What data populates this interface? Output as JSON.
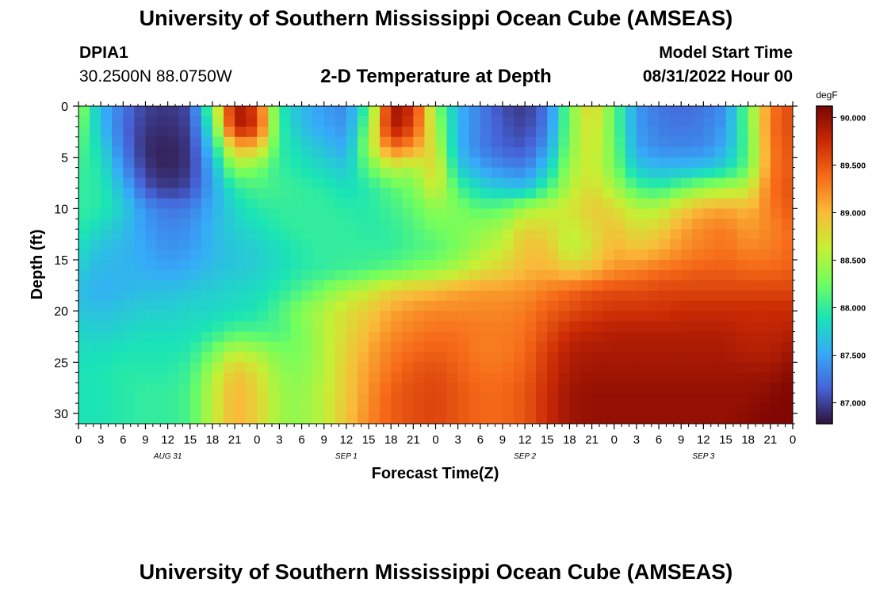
{
  "header": {
    "title": "University of Southern Mississippi Ocean Cube (AMSEAS)",
    "station_id": "DPIA1",
    "station_coords": "30.2500N  88.0750W",
    "plot_title": "2-D Temperature at Depth",
    "model_start_label": "Model Start Time",
    "model_start_value": "08/31/2022 Hour 00"
  },
  "footer": {
    "title": "University of Southern Mississippi Ocean Cube (AMSEAS)"
  },
  "colors": {
    "background": "#ffffff",
    "axis": "#000000",
    "colormap": [
      "#30123b",
      "#4662d7",
      "#36aaf9",
      "#1ae4b6",
      "#72fe5e",
      "#c7ef34",
      "#faba39",
      "#f66b19",
      "#ca2a04",
      "#7a0403"
    ]
  },
  "chart_data": {
    "type": "heatmap",
    "title": "2-D Temperature at Depth",
    "xlabel": "Forecast Time(Z)",
    "ylabel": "Depth (ft)",
    "x_tick_labels": [
      "0",
      "3",
      "6",
      "9",
      "12",
      "15",
      "18",
      "21",
      "0",
      "3",
      "6",
      "9",
      "12",
      "15",
      "18",
      "21",
      "0",
      "3",
      "6",
      "9",
      "12",
      "15",
      "18",
      "21",
      "0",
      "3",
      "6",
      "9",
      "12",
      "15",
      "18",
      "21",
      "0"
    ],
    "date_labels": [
      "AUG 31",
      "SEP 1",
      "SEP 2",
      "SEP 3"
    ],
    "y_tick_labels": [
      "0",
      "5",
      "10",
      "15",
      "20",
      "25",
      "30"
    ],
    "ylim": [
      0,
      31
    ],
    "xlim_hours": [
      0,
      96
    ],
    "colorbar": {
      "unit": "degF",
      "ticks": [
        "87.000",
        "87.500",
        "88.000",
        "88.500",
        "89.000",
        "89.500",
        "90.000"
      ],
      "range": [
        86.78,
        90.12
      ]
    },
    "depth_ft": [
      0,
      2,
      4,
      6,
      8,
      10,
      12,
      14,
      16,
      18,
      20,
      22,
      24,
      26,
      28,
      31
    ],
    "hours": [
      0,
      3,
      6,
      9,
      12,
      15,
      18,
      21,
      24,
      27,
      30,
      33,
      36,
      39,
      42,
      45,
      48,
      51,
      54,
      57,
      60,
      63,
      66,
      69,
      72,
      75,
      78,
      81,
      84,
      87,
      90,
      93,
      96
    ],
    "values": [
      [
        88.45,
        87.6,
        87.25,
        87.0,
        86.95,
        87.05,
        88.3,
        89.95,
        89.6,
        87.95,
        87.6,
        87.45,
        87.35,
        88.1,
        89.95,
        89.75,
        88.35,
        87.6,
        87.3,
        87.05,
        86.95,
        87.25,
        88.3,
        88.9,
        88.2,
        87.45,
        87.25,
        87.2,
        87.25,
        87.4,
        88.25,
        89.3,
        89.6
      ],
      [
        88.3,
        87.65,
        87.2,
        86.95,
        86.9,
        87.0,
        88.05,
        89.9,
        89.7,
        88.0,
        87.65,
        87.5,
        87.4,
        88.3,
        89.95,
        89.6,
        88.5,
        87.6,
        87.3,
        87.1,
        87.0,
        87.3,
        88.3,
        88.8,
        88.2,
        87.45,
        87.3,
        87.25,
        87.3,
        87.45,
        88.2,
        89.35,
        89.6
      ],
      [
        88.15,
        87.8,
        87.25,
        86.9,
        86.85,
        86.95,
        87.75,
        89.0,
        89.0,
        88.0,
        87.8,
        87.65,
        87.5,
        88.45,
        89.4,
        89.2,
        88.65,
        87.6,
        87.3,
        87.15,
        87.1,
        87.45,
        88.35,
        88.75,
        88.25,
        87.5,
        87.35,
        87.35,
        87.35,
        87.55,
        88.15,
        89.3,
        89.55
      ],
      [
        88.05,
        87.9,
        87.4,
        86.95,
        86.85,
        86.95,
        87.55,
        88.4,
        88.3,
        88.0,
        87.9,
        87.8,
        87.7,
        88.2,
        88.6,
        88.5,
        88.85,
        87.75,
        87.5,
        87.35,
        87.3,
        87.7,
        88.45,
        88.7,
        88.3,
        87.7,
        87.6,
        87.6,
        87.65,
        87.8,
        88.2,
        89.3,
        89.5
      ],
      [
        88.0,
        87.95,
        87.6,
        87.1,
        86.95,
        87.05,
        87.5,
        87.95,
        88.1,
        88.05,
        88.0,
        87.95,
        87.85,
        87.95,
        88.15,
        88.3,
        88.7,
        88.1,
        87.8,
        87.7,
        87.65,
        88.05,
        88.55,
        88.8,
        88.5,
        88.1,
        88.0,
        88.2,
        88.4,
        88.5,
        88.6,
        89.35,
        89.55
      ],
      [
        88.0,
        87.95,
        87.75,
        87.4,
        87.25,
        87.3,
        87.55,
        87.8,
        87.95,
        88.0,
        88.0,
        88.0,
        87.95,
        87.95,
        88.05,
        88.2,
        88.4,
        88.3,
        88.15,
        88.2,
        88.45,
        88.6,
        88.7,
        88.9,
        88.8,
        88.55,
        88.55,
        88.85,
        89.05,
        89.1,
        89.0,
        89.3,
        89.5
      ],
      [
        87.95,
        87.8,
        87.65,
        87.45,
        87.35,
        87.4,
        87.6,
        87.75,
        87.85,
        87.95,
        88.0,
        88.0,
        88.0,
        87.95,
        88.0,
        88.1,
        88.25,
        88.3,
        88.4,
        88.5,
        88.85,
        88.8,
        88.6,
        88.8,
        88.95,
        88.75,
        88.85,
        89.1,
        89.25,
        89.3,
        89.15,
        89.25,
        89.4
      ],
      [
        87.85,
        87.65,
        87.6,
        87.5,
        87.4,
        87.45,
        87.6,
        87.7,
        87.75,
        87.85,
        87.95,
        88.0,
        88.0,
        88.0,
        88.0,
        88.1,
        88.15,
        88.3,
        88.5,
        88.65,
        88.95,
        88.95,
        88.55,
        88.75,
        89.05,
        88.95,
        89.05,
        89.2,
        89.3,
        89.35,
        89.25,
        89.3,
        89.4
      ],
      [
        87.75,
        87.6,
        87.6,
        87.55,
        87.5,
        87.55,
        87.65,
        87.7,
        87.75,
        87.85,
        87.95,
        88.0,
        88.05,
        88.1,
        88.2,
        88.3,
        88.4,
        88.55,
        88.75,
        88.85,
        89.0,
        89.05,
        88.9,
        89.0,
        89.2,
        89.25,
        89.35,
        89.4,
        89.45,
        89.45,
        89.4,
        89.4,
        89.45
      ],
      [
        87.65,
        87.55,
        87.6,
        87.65,
        87.65,
        87.7,
        87.75,
        87.8,
        87.85,
        87.95,
        88.1,
        88.3,
        88.5,
        88.65,
        88.85,
        88.95,
        89.0,
        89.1,
        89.15,
        89.15,
        89.2,
        89.3,
        89.4,
        89.5,
        89.55,
        89.55,
        89.6,
        89.6,
        89.6,
        89.6,
        89.6,
        89.6,
        89.6
      ],
      [
        87.7,
        87.65,
        87.7,
        87.75,
        87.75,
        87.8,
        87.8,
        87.85,
        87.9,
        88.1,
        88.35,
        88.55,
        88.75,
        88.9,
        89.1,
        89.2,
        89.25,
        89.25,
        89.25,
        89.25,
        89.3,
        89.45,
        89.55,
        89.65,
        89.7,
        89.7,
        89.7,
        89.75,
        89.75,
        89.75,
        89.75,
        89.75,
        89.75
      ],
      [
        87.8,
        87.75,
        87.8,
        87.85,
        87.85,
        87.85,
        87.95,
        88.1,
        88.1,
        88.1,
        88.3,
        88.55,
        88.8,
        89.0,
        89.2,
        89.3,
        89.35,
        89.35,
        89.3,
        89.3,
        89.35,
        89.55,
        89.75,
        89.8,
        89.85,
        89.85,
        89.85,
        89.85,
        89.85,
        89.85,
        89.8,
        89.8,
        89.85
      ],
      [
        87.85,
        87.85,
        87.9,
        87.9,
        87.9,
        87.95,
        88.25,
        88.6,
        88.5,
        88.3,
        88.3,
        88.55,
        88.85,
        89.1,
        89.3,
        89.4,
        89.45,
        89.4,
        89.3,
        89.3,
        89.4,
        89.65,
        89.85,
        89.9,
        89.9,
        89.9,
        89.9,
        89.9,
        89.9,
        89.9,
        89.85,
        89.85,
        89.95
      ],
      [
        87.9,
        87.9,
        87.95,
        87.95,
        87.95,
        88.05,
        88.5,
        88.95,
        88.75,
        88.4,
        88.35,
        88.55,
        88.9,
        89.15,
        89.35,
        89.5,
        89.55,
        89.45,
        89.35,
        89.35,
        89.45,
        89.7,
        89.9,
        89.95,
        89.95,
        89.95,
        89.95,
        89.95,
        89.95,
        89.95,
        89.95,
        89.95,
        90.05
      ],
      [
        87.9,
        87.9,
        87.95,
        88.0,
        88.0,
        88.1,
        88.6,
        89.05,
        88.85,
        88.45,
        88.4,
        88.6,
        88.9,
        89.2,
        89.45,
        89.55,
        89.6,
        89.5,
        89.4,
        89.4,
        89.5,
        89.75,
        89.95,
        90.0,
        90.0,
        90.0,
        90.0,
        90.0,
        90.0,
        90.0,
        90.0,
        90.05,
        90.1
      ],
      [
        87.9,
        87.9,
        87.95,
        88.0,
        88.0,
        88.1,
        88.6,
        89.05,
        88.85,
        88.45,
        88.4,
        88.6,
        88.95,
        89.25,
        89.45,
        89.55,
        89.6,
        89.5,
        89.4,
        89.4,
        89.5,
        89.75,
        89.95,
        90.0,
        90.0,
        90.0,
        90.0,
        90.0,
        90.0,
        90.0,
        90.05,
        90.1,
        90.1
      ]
    ]
  }
}
